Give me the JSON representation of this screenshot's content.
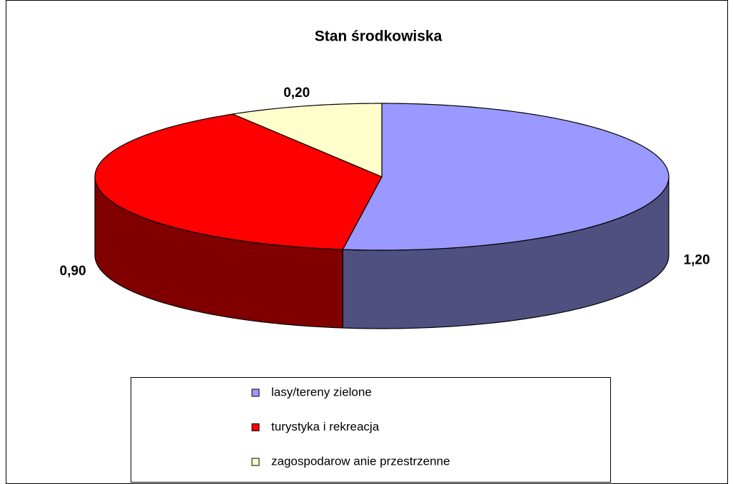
{
  "chart_data": {
    "type": "pie3d",
    "title": "Stan środkowiska",
    "categories": [
      "lasy/tereny zielone",
      "turystyka i rekreacja",
      "zagospodarow anie przestrzenne"
    ],
    "values": [
      1.2,
      0.9,
      0.2
    ],
    "value_labels": [
      "1,20",
      "0,90",
      "0,20"
    ],
    "colors": [
      "#9999ff",
      "#ff0000",
      "#ffffcc"
    ],
    "side_colors": [
      "#4f4f80",
      "#800000",
      "#808066"
    ],
    "legend": "bottom"
  }
}
